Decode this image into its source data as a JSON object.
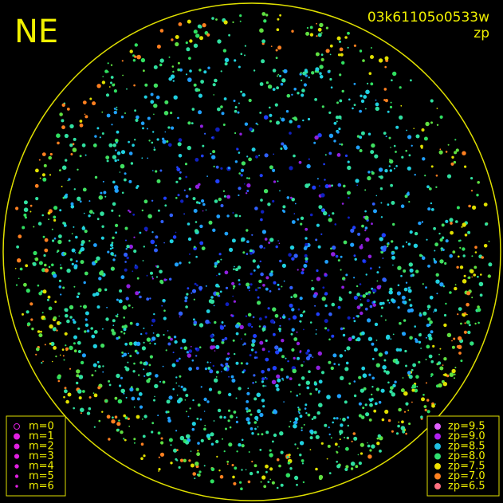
{
  "header": {
    "direction": "NE",
    "frame_id": "03k61105o0533w",
    "mode": "zp"
  },
  "legend_m": {
    "items": [
      "m=0",
      "m=1",
      "m=2",
      "m=3",
      "m=4",
      "m=5",
      "m=6"
    ]
  },
  "legend_zp": {
    "items": [
      {
        "label": "zp=9.5",
        "color": "#e060ff"
      },
      {
        "label": "zp=9.0",
        "color": "#b020f0"
      },
      {
        "label": "zp=8.5",
        "color": "#20c0e0"
      },
      {
        "label": "zp=8.0",
        "color": "#30e070"
      },
      {
        "label": "zp=7.5",
        "color": "#f0e000"
      },
      {
        "label": "zp=7.0",
        "color": "#ff8020"
      },
      {
        "label": "zp=6.5",
        "color": "#ff7080"
      }
    ]
  }
}
